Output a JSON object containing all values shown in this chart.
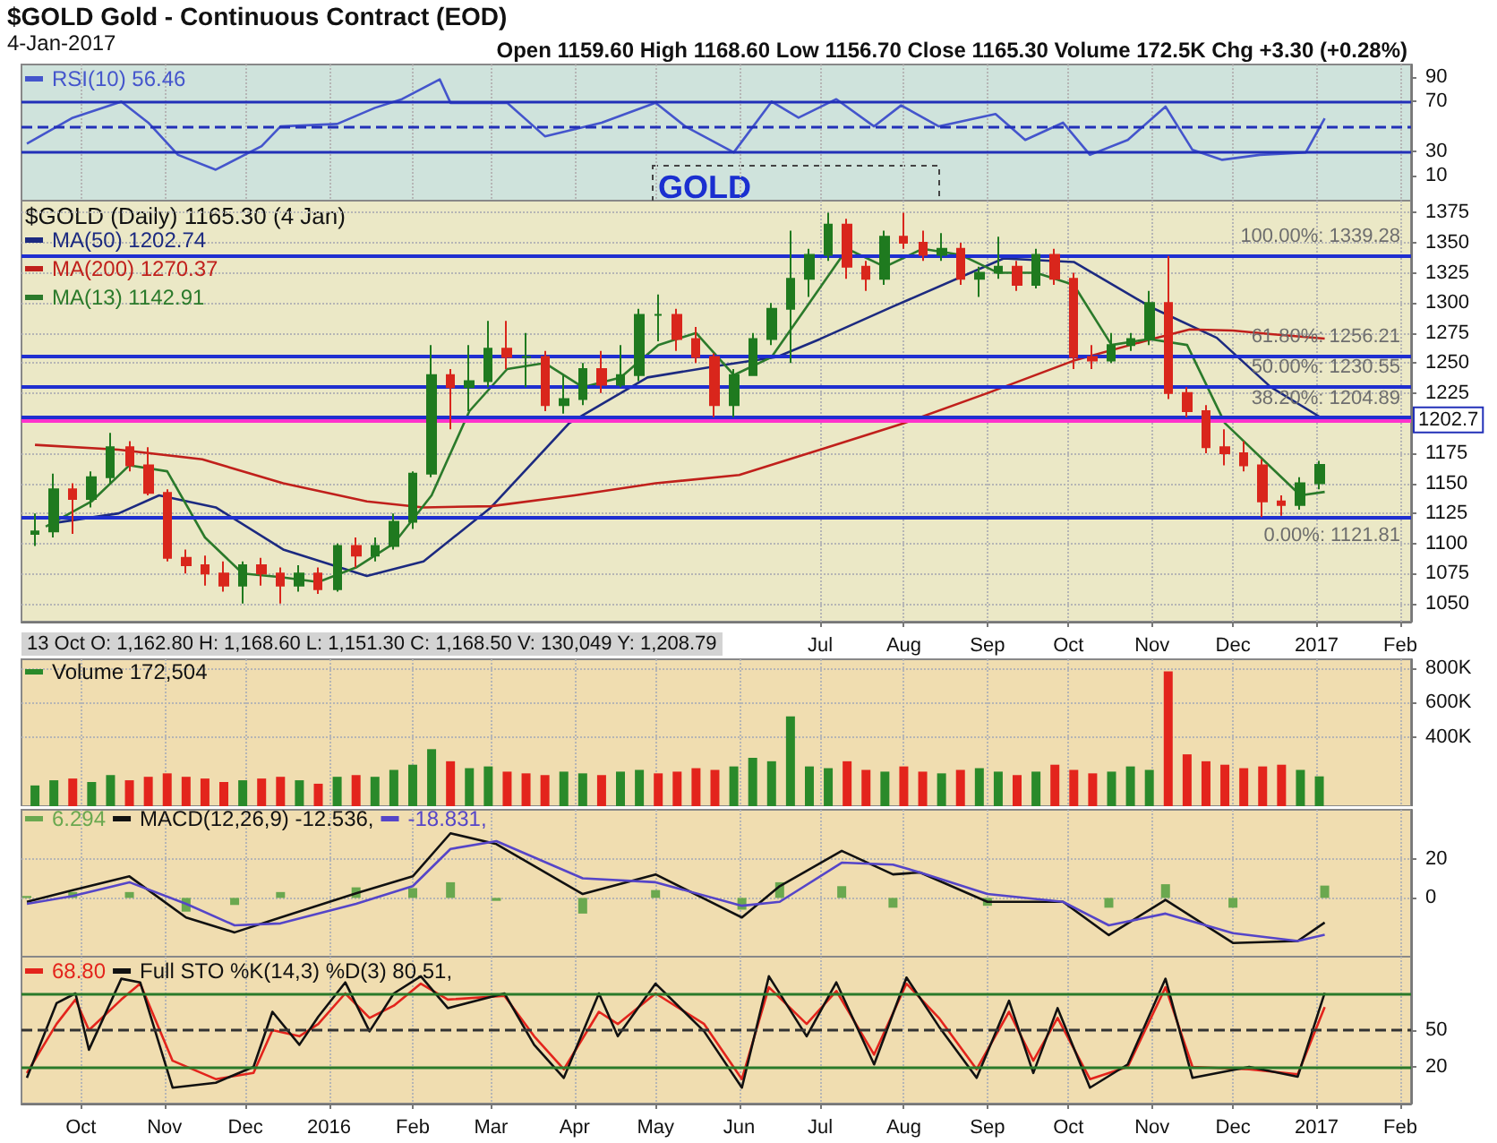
{
  "chart_data": [
    {
      "type": "line",
      "title": "$GOLD Gold - Continuous Contract (EOD)",
      "subtitle": "4-Jan-2017",
      "annotations": [
        "Open 1159.60 High 1168.60 Low 1156.70 Close 1165.30 Volume 172.5K Chg +3.30 (+0.28%)",
        "GOLD"
      ],
      "xlim": [
        "2015-09-09",
        "2017-02-05"
      ],
      "ylim": [
        -10,
        100
      ],
      "yticks": [
        10,
        30,
        70,
        90
      ],
      "xticks": [
        "2015-10-01",
        "2015-11-01",
        "2015-12-01",
        "2016-01-01",
        "2016-02-01",
        "2016-03-01",
        "2016-04-01",
        "2016-05-01",
        "2016-06-01",
        "2016-07-01",
        "2016-08-01",
        "2016-09-01",
        "2016-10-01",
        "2016-11-01",
        "2016-12-01",
        "2017-01-01",
        "2017-02-01"
      ],
      "tick_labels": "y",
      "grid": "x",
      "legend": "top left",
      "marker": "none",
      "ref_lines": [
        {
          "axis": "y",
          "value": 70,
          "color": "#2230b8",
          "line_style": "solid"
        },
        {
          "axis": "y",
          "value": 50,
          "color": "#2230b8",
          "line_style": "dashed"
        },
        {
          "axis": "y",
          "value": 30,
          "color": "#2230b8",
          "line_style": "solid"
        }
      ],
      "series": [
        {
          "name": "RSI(10) 56.46",
          "color": "#4455cc",
          "x": [
            "2015-09-11",
            "2015-09-28",
            "2015-10-16",
            "2015-10-26",
            "2015-11-06",
            "2015-11-20",
            "2015-12-07",
            "2015-12-14",
            "2016-01-04",
            "2016-01-18",
            "2016-01-28",
            "2016-02-11",
            "2016-02-15",
            "2016-03-07",
            "2016-03-21",
            "2016-04-11",
            "2016-05-01",
            "2016-05-12",
            "2016-05-30",
            "2016-06-13",
            "2016-06-23",
            "2016-07-07",
            "2016-07-21",
            "2016-07-31",
            "2016-08-14",
            "2016-09-04",
            "2016-09-15",
            "2016-09-29",
            "2016-10-09",
            "2016-10-23",
            "2016-11-06",
            "2016-11-16",
            "2016-11-27",
            "2016-12-11",
            "2016-12-28",
            "2017-01-04"
          ],
          "values": [
            36,
            57,
            70,
            53,
            27,
            15,
            34,
            50,
            52,
            65,
            72,
            88,
            69,
            69,
            42,
            53,
            69,
            50,
            29,
            70,
            57,
            72,
            50,
            67,
            50,
            60,
            39,
            53,
            27,
            39,
            66,
            31,
            23,
            27,
            29,
            56.46
          ]
        }
      ]
    },
    {
      "type": "candlestick",
      "annotations": [
        "$GOLD (Daily) 1165.30 (4 Jan)",
        "13 Oct O: 1,162.80 H: 1,168.60 L: 1,151.30 C: 1,168.50 V: 130,049 Y: 1,208.79"
      ],
      "xlim": [
        "2015-09-09",
        "2017-02-05"
      ],
      "ylim": [
        1035,
        1385
      ],
      "yticks": [
        1050,
        1075,
        1100,
        1125,
        1150,
        1175,
        1225,
        1250,
        1275,
        1300,
        1325,
        1350,
        1375
      ],
      "xticks": [
        {
          "value": "2016-07-01",
          "label": "Jul"
        },
        {
          "value": "2016-08-01",
          "label": "Aug"
        },
        {
          "value": "2016-09-01",
          "label": "Sep"
        },
        {
          "value": "2016-10-01",
          "label": "Oct"
        },
        {
          "value": "2016-11-01",
          "label": "Nov"
        },
        {
          "value": "2016-12-01",
          "label": "Dec"
        },
        {
          "value": "2017-01-01",
          "label": "2017"
        },
        {
          "value": "2017-02-01",
          "label": "Feb"
        }
      ],
      "grid": true,
      "legend": "top left",
      "marker": "none",
      "x": [
        "2015-09-14",
        "2015-09-21",
        "2015-09-28",
        "2015-10-05",
        "2015-10-12",
        "2015-10-19",
        "2015-10-26",
        "2015-11-02",
        "2015-11-09",
        "2015-11-16",
        "2015-11-23",
        "2015-11-30",
        "2015-12-07",
        "2015-12-14",
        "2015-12-21",
        "2015-12-28",
        "2016-01-04",
        "2016-01-11",
        "2016-01-18",
        "2016-01-25",
        "2016-02-01",
        "2016-02-08",
        "2016-02-15",
        "2016-02-22",
        "2016-02-29",
        "2016-03-07",
        "2016-03-14",
        "2016-03-21",
        "2016-03-28",
        "2016-04-04",
        "2016-04-11",
        "2016-04-18",
        "2016-04-25",
        "2016-05-02",
        "2016-05-09",
        "2016-05-16",
        "2016-05-23",
        "2016-05-30",
        "2016-06-06",
        "2016-06-13",
        "2016-06-20",
        "2016-06-27",
        "2016-07-04",
        "2016-07-11",
        "2016-07-18",
        "2016-07-25",
        "2016-08-01",
        "2016-08-08",
        "2016-08-15",
        "2016-08-22",
        "2016-08-29",
        "2016-09-05",
        "2016-09-12",
        "2016-09-19",
        "2016-09-26",
        "2016-10-03",
        "2016-10-10",
        "2016-10-17",
        "2016-10-24",
        "2016-10-31",
        "2016-11-07",
        "2016-11-14",
        "2016-11-21",
        "2016-11-28",
        "2016-12-05",
        "2016-12-12",
        "2016-12-19",
        "2016-12-26",
        "2017-01-02"
      ],
      "ohlc": [
        [
          1108,
          1125,
          1098,
          1110
        ],
        [
          1110,
          1158,
          1105,
          1145
        ],
        [
          1145,
          1150,
          1108,
          1137
        ],
        [
          1137,
          1160,
          1130,
          1155
        ],
        [
          1155,
          1192,
          1150,
          1180
        ],
        [
          1180,
          1185,
          1160,
          1165
        ],
        [
          1165,
          1180,
          1140,
          1142
        ],
        [
          1142,
          1145,
          1085,
          1088
        ],
        [
          1088,
          1095,
          1075,
          1082
        ],
        [
          1082,
          1090,
          1065,
          1075
        ],
        [
          1075,
          1085,
          1060,
          1065
        ],
        [
          1065,
          1085,
          1050,
          1082
        ],
        [
          1082,
          1088,
          1065,
          1075
        ],
        [
          1075,
          1080,
          1050,
          1065
        ],
        [
          1065,
          1082,
          1060,
          1075
        ],
        [
          1075,
          1080,
          1058,
          1062
        ],
        [
          1062,
          1100,
          1060,
          1098
        ],
        [
          1098,
          1105,
          1080,
          1090
        ],
        [
          1090,
          1105,
          1085,
          1098
        ],
        [
          1098,
          1125,
          1095,
          1118
        ],
        [
          1118,
          1160,
          1112,
          1158
        ],
        [
          1158,
          1265,
          1155,
          1240
        ],
        [
          1240,
          1245,
          1195,
          1230
        ],
        [
          1230,
          1265,
          1210,
          1235
        ],
        [
          1235,
          1285,
          1230,
          1262
        ],
        [
          1262,
          1285,
          1245,
          1255
        ],
        [
          1255,
          1275,
          1230,
          1255
        ],
        [
          1255,
          1260,
          1210,
          1215
        ],
        [
          1215,
          1240,
          1208,
          1220
        ],
        [
          1220,
          1250,
          1215,
          1245
        ],
        [
          1245,
          1260,
          1225,
          1232
        ],
        [
          1232,
          1265,
          1230,
          1240
        ],
        [
          1240,
          1295,
          1235,
          1290
        ],
        [
          1290,
          1307,
          1268,
          1290
        ],
        [
          1290,
          1295,
          1260,
          1270
        ],
        [
          1270,
          1280,
          1250,
          1255
        ],
        [
          1255,
          1258,
          1205,
          1215
        ],
        [
          1215,
          1245,
          1205,
          1240
        ],
        [
          1240,
          1275,
          1240,
          1270
        ],
        [
          1270,
          1300,
          1265,
          1295
        ],
        [
          1295,
          1360,
          1250,
          1320
        ],
        [
          1320,
          1345,
          1305,
          1340
        ],
        [
          1340,
          1375,
          1335,
          1365
        ],
        [
          1365,
          1370,
          1320,
          1330
        ],
        [
          1330,
          1335,
          1310,
          1320
        ],
        [
          1320,
          1360,
          1315,
          1355
        ],
        [
          1355,
          1375,
          1345,
          1350
        ],
        [
          1350,
          1360,
          1335,
          1340
        ],
        [
          1340,
          1358,
          1335,
          1345
        ],
        [
          1345,
          1350,
          1315,
          1320
        ],
        [
          1320,
          1330,
          1305,
          1325
        ],
        [
          1325,
          1355,
          1320,
          1330
        ],
        [
          1330,
          1335,
          1310,
          1315
        ],
        [
          1315,
          1345,
          1312,
          1340
        ],
        [
          1340,
          1345,
          1315,
          1320
        ],
        [
          1320,
          1325,
          1245,
          1255
        ],
        [
          1255,
          1265,
          1245,
          1252
        ],
        [
          1252,
          1275,
          1250,
          1265
        ],
        [
          1265,
          1275,
          1260,
          1270
        ],
        [
          1270,
          1310,
          1265,
          1300
        ],
        [
          1300,
          1339,
          1220,
          1225
        ],
        [
          1225,
          1230,
          1205,
          1210
        ],
        [
          1210,
          1215,
          1175,
          1180
        ],
        [
          1180,
          1195,
          1165,
          1175
        ],
        [
          1175,
          1185,
          1160,
          1165
        ],
        [
          1165,
          1170,
          1122,
          1135
        ],
        [
          1135,
          1140,
          1123,
          1132
        ],
        [
          1132,
          1155,
          1128,
          1150
        ],
        [
          1150,
          1168.6,
          1145,
          1165.3
        ]
      ],
      "ref_lines": [
        {
          "axis": "y",
          "value": 1202.7,
          "label": "1202.7",
          "color": "#ff33cc"
        },
        {
          "axis": "y",
          "value": 1339.28,
          "label": "100.00%: 1339.28",
          "color": "#1f2fd0"
        },
        {
          "axis": "y",
          "value": 1256.21,
          "label": "61.80%: 1256.21",
          "color": "#1f2fd0"
        },
        {
          "axis": "y",
          "value": 1230.55,
          "label": "50.00%: 1230.55",
          "color": "#1f2fd0"
        },
        {
          "axis": "y",
          "value": 1204.89,
          "label": "38.20%: 1204.89",
          "color": "#1f2fd0"
        },
        {
          "axis": "y",
          "value": 1121.81,
          "label": "0.00%: 1121.81",
          "color": "#1f2fd0"
        }
      ],
      "series": [
        {
          "type": "line",
          "name": "MA(50) 1202.74",
          "color": "#1c2a80",
          "x": [
            "2015-09-21",
            "2015-10-15",
            "2015-10-30",
            "2015-11-20",
            "2015-12-15",
            "2016-01-15",
            "2016-02-05",
            "2016-03-01",
            "2016-03-30",
            "2016-04-28",
            "2016-05-25",
            "2016-06-15",
            "2016-07-01",
            "2016-07-28",
            "2016-09-07",
            "2016-10-03",
            "2016-11-01",
            "2016-11-25",
            "2016-12-15",
            "2017-01-04"
          ],
          "values": [
            1117,
            1125,
            1140,
            1130,
            1095,
            1073,
            1085,
            1130,
            1200,
            1238,
            1248,
            1255,
            1270,
            1297,
            1337,
            1334,
            1296,
            1271,
            1230,
            1202.74
          ]
        },
        {
          "type": "line",
          "name": "MA(200) 1270.37",
          "color": "#c0201b",
          "x": [
            "2015-09-14",
            "2015-10-15",
            "2015-11-15",
            "2015-12-15",
            "2016-01-15",
            "2016-02-05",
            "2016-03-01",
            "2016-04-01",
            "2016-05-01",
            "2016-06-01",
            "2016-07-01",
            "2016-08-01",
            "2016-09-01",
            "2016-10-03",
            "2016-11-01",
            "2016-11-15",
            "2016-12-01",
            "2016-12-15",
            "2017-01-04"
          ],
          "values": [
            1182,
            1178,
            1170,
            1150,
            1135,
            1130,
            1131,
            1140,
            1150,
            1157,
            1178,
            1200,
            1225,
            1252,
            1270,
            1278,
            1277,
            1274,
            1270.37
          ]
        },
        {
          "type": "line",
          "name": "MA(13) 1142.91",
          "color": "#2b7a2b",
          "x": [
            "2015-09-18",
            "2015-10-05",
            "2015-10-19",
            "2015-11-02",
            "2015-11-16",
            "2015-11-30",
            "2015-12-14",
            "2015-12-28",
            "2016-01-11",
            "2016-01-25",
            "2016-02-08",
            "2016-02-22",
            "2016-03-07",
            "2016-03-21",
            "2016-04-04",
            "2016-04-18",
            "2016-05-02",
            "2016-05-16",
            "2016-05-30",
            "2016-06-13",
            "2016-06-27",
            "2016-07-11",
            "2016-07-25",
            "2016-08-08",
            "2016-08-22",
            "2016-09-05",
            "2016-09-19",
            "2016-10-03",
            "2016-10-17",
            "2016-10-31",
            "2016-11-14",
            "2016-11-28",
            "2016-12-12",
            "2016-12-26",
            "2017-01-04"
          ],
          "values": [
            1114,
            1135,
            1165,
            1160,
            1105,
            1075,
            1072,
            1068,
            1080,
            1100,
            1140,
            1210,
            1245,
            1250,
            1230,
            1238,
            1265,
            1275,
            1240,
            1255,
            1300,
            1345,
            1330,
            1345,
            1340,
            1325,
            1325,
            1315,
            1265,
            1270,
            1265,
            1200,
            1170,
            1140,
            1142.91
          ]
        }
      ]
    },
    {
      "type": "bar",
      "xlim": [
        "2015-09-09",
        "2017-02-05"
      ],
      "ylim": [
        0,
        850
      ],
      "yticks": [
        {
          "value": 400,
          "label": "400K"
        },
        {
          "value": 600,
          "label": "600K"
        },
        {
          "value": 800,
          "label": "800K"
        }
      ],
      "xticks": [
        "2015-10-01",
        "2015-11-01",
        "2015-12-01",
        "2016-01-01",
        "2016-02-01",
        "2016-03-01",
        "2016-04-01",
        "2016-05-01",
        "2016-06-01",
        "2016-07-01",
        "2016-08-01",
        "2016-09-01",
        "2016-10-01",
        "2016-11-01",
        "2016-12-01",
        "2017-01-01",
        "2017-02-01"
      ],
      "tick_labels": "y",
      "grid": true,
      "legend": "top left",
      "x": [
        "2015-09-14",
        "2015-09-21",
        "2015-09-28",
        "2015-10-05",
        "2015-10-12",
        "2015-10-19",
        "2015-10-26",
        "2015-11-02",
        "2015-11-09",
        "2015-11-16",
        "2015-11-23",
        "2015-11-30",
        "2015-12-07",
        "2015-12-14",
        "2015-12-21",
        "2015-12-28",
        "2016-01-04",
        "2016-01-11",
        "2016-01-18",
        "2016-01-25",
        "2016-02-01",
        "2016-02-08",
        "2016-02-15",
        "2016-02-22",
        "2016-02-29",
        "2016-03-07",
        "2016-03-14",
        "2016-03-21",
        "2016-03-28",
        "2016-04-04",
        "2016-04-11",
        "2016-04-18",
        "2016-04-25",
        "2016-05-02",
        "2016-05-09",
        "2016-05-16",
        "2016-05-23",
        "2016-05-30",
        "2016-06-06",
        "2016-06-13",
        "2016-06-20",
        "2016-06-27",
        "2016-07-04",
        "2016-07-11",
        "2016-07-18",
        "2016-07-25",
        "2016-08-01",
        "2016-08-08",
        "2016-08-15",
        "2016-08-22",
        "2016-08-29",
        "2016-09-05",
        "2016-09-12",
        "2016-09-19",
        "2016-09-26",
        "2016-10-03",
        "2016-10-10",
        "2016-10-17",
        "2016-10-24",
        "2016-10-31",
        "2016-11-07",
        "2016-11-14",
        "2016-11-21",
        "2016-11-28",
        "2016-12-05",
        "2016-12-12",
        "2016-12-19",
        "2016-12-26",
        "2017-01-02"
      ],
      "series": [
        {
          "name": "Volume 172,504",
          "values": [
            120,
            150,
            160,
            140,
            180,
            150,
            170,
            190,
            170,
            160,
            140,
            150,
            160,
            170,
            150,
            130,
            170,
            180,
            170,
            210,
            240,
            330,
            260,
            220,
            230,
            200,
            190,
            180,
            200,
            190,
            180,
            200,
            210,
            190,
            200,
            220,
            210,
            230,
            280,
            260,
            520,
            230,
            220,
            260,
            210,
            200,
            230,
            200,
            190,
            210,
            220,
            200,
            180,
            200,
            240,
            210,
            190,
            200,
            230,
            210,
            780,
            300,
            260,
            240,
            220,
            230,
            240,
            210,
            172.5
          ],
          "colors": [
            "#2a8a2a",
            "#2a8a2a",
            "#e3241c",
            "#2a8a2a",
            "#2a8a2a",
            "#e3241c",
            "#e3241c",
            "#e3241c",
            "#e3241c",
            "#e3241c",
            "#e3241c",
            "#2a8a2a",
            "#e3241c",
            "#e3241c",
            "#2a8a2a",
            "#e3241c",
            "#2a8a2a",
            "#e3241c",
            "#2a8a2a",
            "#2a8a2a",
            "#2a8a2a",
            "#2a8a2a",
            "#e3241c",
            "#2a8a2a",
            "#2a8a2a",
            "#e3241c",
            "#e3241c",
            "#e3241c",
            "#2a8a2a",
            "#2a8a2a",
            "#e3241c",
            "#2a8a2a",
            "#2a8a2a",
            "#e3241c",
            "#e3241c",
            "#e3241c",
            "#e3241c",
            "#2a8a2a",
            "#2a8a2a",
            "#2a8a2a",
            "#2a8a2a",
            "#2a8a2a",
            "#2a8a2a",
            "#e3241c",
            "#e3241c",
            "#2a8a2a",
            "#e3241c",
            "#e3241c",
            "#2a8a2a",
            "#e3241c",
            "#2a8a2a",
            "#2a8a2a",
            "#e3241c",
            "#2a8a2a",
            "#e3241c",
            "#e3241c",
            "#e3241c",
            "#2a8a2a",
            "#2a8a2a",
            "#2a8a2a",
            "#e3241c",
            "#e3241c",
            "#e3241c",
            "#e3241c",
            "#e3241c",
            "#e3241c",
            "#e3241c",
            "#2a8a2a",
            "#2a8a2a"
          ]
        }
      ]
    },
    {
      "type": "line",
      "xlim": [
        "2015-09-09",
        "2017-02-05"
      ],
      "ylim": [
        -30,
        45
      ],
      "yticks": [
        0,
        20
      ],
      "xticks": [
        "2015-10-01",
        "2015-11-01",
        "2015-12-01",
        "2016-01-01",
        "2016-02-01",
        "2016-03-01",
        "2016-04-01",
        "2016-05-01",
        "2016-06-01",
        "2016-07-01",
        "2016-08-01",
        "2016-09-01",
        "2016-10-01",
        "2016-11-01",
        "2016-12-01",
        "2017-01-01",
        "2017-02-01"
      ],
      "tick_labels": "y",
      "grid": true,
      "legend": "top left",
      "marker": "none",
      "x": [
        "2015-09-11",
        "2015-09-28",
        "2015-10-19",
        "2015-11-09",
        "2015-11-27",
        "2015-12-14",
        "2016-01-11",
        "2016-02-01",
        "2016-02-15",
        "2016-03-03",
        "2016-04-04",
        "2016-05-01",
        "2016-06-02",
        "2016-06-16",
        "2016-07-09",
        "2016-07-28",
        "2016-08-07",
        "2016-09-01",
        "2016-09-29",
        "2016-10-16",
        "2016-11-06",
        "2016-12-01",
        "2016-12-25",
        "2017-01-04"
      ],
      "series": [
        {
          "type": "bar",
          "name": "6.294",
          "color": "#6aa84f",
          "values": [
            1,
            3,
            3,
            -7,
            -3.6,
            3,
            5.4,
            5,
            8,
            -1.5,
            -8,
            4,
            -6,
            8,
            6,
            -5,
            0,
            -4,
            0,
            -5,
            7,
            -5,
            0,
            6.294
          ]
        },
        {
          "type": "line",
          "name": "MACD(12,26,9) -12.536,",
          "color": "#111111",
          "values": [
            -2,
            4,
            11,
            -10,
            -17.6,
            -10,
            2.4,
            11,
            33,
            27.5,
            2,
            12,
            -10,
            6,
            24,
            12,
            13,
            -2,
            -2,
            -19,
            -1,
            -23,
            -22,
            -12.536
          ]
        },
        {
          "type": "line",
          "name": "-18.831,",
          "color": "#5545c8",
          "values": [
            -3,
            1,
            8,
            -3,
            -14,
            -13,
            -3,
            6,
            25,
            29,
            10,
            8,
            -4,
            -2,
            18,
            17,
            13,
            2,
            -2,
            -14,
            -8,
            -18,
            -22,
            -18.831
          ]
        }
      ]
    },
    {
      "type": "line",
      "xlim": [
        "2015-09-09",
        "2017-02-05"
      ],
      "ylim": [
        -10,
        110
      ],
      "yticks": [
        20,
        50
      ],
      "xticks": [
        {
          "value": "2015-10-01",
          "label": "Oct"
        },
        {
          "value": "2015-11-01",
          "label": "Nov"
        },
        {
          "value": "2015-12-01",
          "label": "Dec"
        },
        {
          "value": "2016-01-01",
          "label": "2016"
        },
        {
          "value": "2016-02-01",
          "label": "Feb"
        },
        {
          "value": "2016-03-01",
          "label": "Mar"
        },
        {
          "value": "2016-04-01",
          "label": "Apr"
        },
        {
          "value": "2016-05-01",
          "label": "May"
        },
        {
          "value": "2016-06-01",
          "label": "Jun"
        },
        {
          "value": "2016-07-01",
          "label": "Jul"
        },
        {
          "value": "2016-08-01",
          "label": "Aug"
        },
        {
          "value": "2016-09-01",
          "label": "Sep"
        },
        {
          "value": "2016-10-01",
          "label": "Oct"
        },
        {
          "value": "2016-11-01",
          "label": "Nov"
        },
        {
          "value": "2016-12-01",
          "label": "Dec"
        },
        {
          "value": "2017-01-01",
          "label": "2017"
        },
        {
          "value": "2017-02-01",
          "label": "Feb"
        }
      ],
      "grid": "x",
      "legend": "top left",
      "marker": "none",
      "ref_lines": [
        {
          "axis": "y",
          "value": 80,
          "color": "#2a7a2a",
          "line_style": "solid"
        },
        {
          "axis": "y",
          "value": 50,
          "color": "#333333",
          "line_style": "dashed"
        },
        {
          "axis": "y",
          "value": 20,
          "color": "#2a7a2a",
          "line_style": "solid"
        }
      ],
      "x": [
        "2015-09-11",
        "2015-09-22",
        "2015-09-29",
        "2015-10-04",
        "2015-10-16",
        "2015-10-23",
        "2015-11-04",
        "2015-11-20",
        "2015-12-04",
        "2015-12-11",
        "2015-12-21",
        "2015-12-28",
        "2016-01-07",
        "2016-01-16",
        "2016-01-25",
        "2016-02-04",
        "2016-02-14",
        "2016-03-06",
        "2016-03-17",
        "2016-03-28",
        "2016-04-10",
        "2016-04-17",
        "2016-05-01",
        "2016-05-19",
        "2016-06-02",
        "2016-06-12",
        "2016-06-26",
        "2016-07-07",
        "2016-07-21",
        "2016-08-02",
        "2016-08-14",
        "2016-08-28",
        "2016-09-09",
        "2016-09-18",
        "2016-09-27",
        "2016-10-09",
        "2016-10-23",
        "2016-11-06",
        "2016-11-16",
        "2016-12-07",
        "2016-12-25",
        "2017-01-04"
      ],
      "series": [
        {
          "name": "68.80",
          "color": "#e3241c",
          "values": [
            15,
            55,
            75,
            50,
            75,
            88,
            25,
            10,
            15,
            50,
            45,
            55,
            80,
            60,
            70,
            88,
            75,
            78,
            45,
            18,
            65,
            55,
            80,
            55,
            10,
            85,
            55,
            82,
            30,
            88,
            60,
            18,
            65,
            25,
            60,
            10,
            20,
            85,
            20,
            18,
            14,
            68.8
          ]
        },
        {
          "name": "Full STO %K(14,3) %D(3) 80.51,",
          "color": "#111111",
          "values": [
            11,
            72,
            80,
            34,
            92,
            89,
            3,
            7,
            20,
            65,
            38,
            61,
            89,
            49,
            80,
            94,
            68,
            80,
            38,
            11,
            80,
            45,
            88,
            49,
            3,
            94,
            45,
            89,
            22,
            93,
            53,
            11,
            74,
            15,
            68,
            3,
            22,
            92,
            11,
            20,
            12,
            80.51
          ]
        }
      ]
    }
  ]
}
